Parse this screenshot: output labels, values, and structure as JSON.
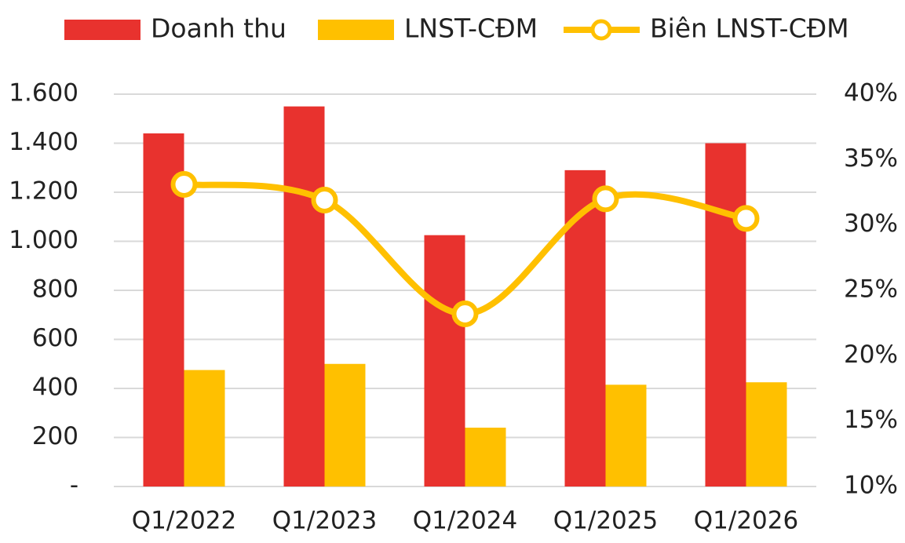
{
  "chart_data": {
    "type": "bar",
    "categories": [
      "Q1/2022",
      "Q1/2023",
      "Q1/2024",
      "Q1/2025",
      "Q1/2026"
    ],
    "series": [
      {
        "name": "Doanh thu",
        "color": "#e8322e",
        "values": [
          1440,
          1550,
          1025,
          1290,
          1400
        ]
      },
      {
        "name": "LNST-CĐM",
        "color": "#ffc000",
        "values": [
          475,
          500,
          240,
          415,
          425
        ]
      },
      {
        "name": "Biên LNST-CĐM",
        "type": "line",
        "axis": "y2",
        "color": "#ffc000",
        "values": [
          33.1,
          31.9,
          23.2,
          32.0,
          30.5
        ]
      }
    ],
    "ylim": [
      0,
      1600
    ],
    "yticks": [
      {
        "value": 0,
        "label": "-"
      },
      200,
      400,
      600,
      800,
      {
        "value": 1000,
        "label": "1.000"
      },
      {
        "value": 1200,
        "label": "1.200"
      },
      {
        "value": 1400,
        "label": "1.400"
      },
      {
        "value": 1600,
        "label": "1.600"
      }
    ],
    "y2lim": [
      10,
      40
    ],
    "y2ticks": [
      {
        "value": 10,
        "label": "10%"
      },
      {
        "value": 15,
        "label": "15%"
      },
      {
        "value": 20,
        "label": "20%"
      },
      {
        "value": 25,
        "label": "25%"
      },
      {
        "value": 30,
        "label": "30%"
      },
      {
        "value": 35,
        "label": "35%"
      },
      {
        "value": 40,
        "label": "40%"
      }
    ],
    "grid": true,
    "legend": "top"
  }
}
